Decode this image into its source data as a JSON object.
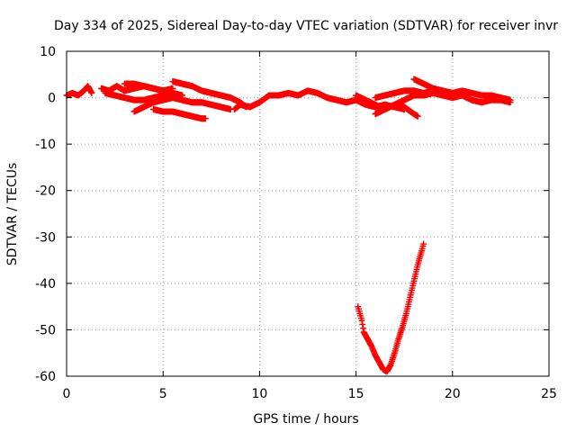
{
  "chart_data": {
    "type": "scatter",
    "title": "Day 334 of 2025, Sidereal Day-to-day VTEC variation (SDTVAR) for receiver invr",
    "xlabel": "GPS time / hours",
    "ylabel": "SDTVAR / TECUs",
    "xlim": [
      0,
      25
    ],
    "ylim": [
      -60,
      10
    ],
    "xticks": [
      0,
      5,
      10,
      15,
      20,
      25
    ],
    "yticks": [
      10,
      0,
      -10,
      -20,
      -30,
      -40,
      -50,
      -60
    ],
    "grid": true,
    "marker": "plus",
    "colors": {
      "series": "#ff0000",
      "grid": "#a0a0a0",
      "axes": "#000000"
    },
    "series": [
      {
        "tracks": [
          [
            [
              0.0,
              0.5
            ],
            [
              0.3,
              1.0
            ],
            [
              0.6,
              0.5
            ],
            [
              0.9,
              1.5
            ],
            [
              1.1,
              2.5
            ],
            [
              1.3,
              1.0
            ]
          ],
          [
            [
              1.8,
              2.0
            ],
            [
              2.2,
              1.5
            ],
            [
              2.6,
              2.5
            ],
            [
              3.0,
              1.5
            ],
            [
              3.5,
              2.0
            ],
            [
              4.0,
              2.5
            ],
            [
              4.5,
              2.0
            ],
            [
              5.0,
              1.5
            ],
            [
              5.5,
              2.0
            ]
          ],
          [
            [
              2.0,
              1.0
            ],
            [
              2.5,
              0.5
            ],
            [
              3.0,
              0.0
            ],
            [
              3.5,
              -0.5
            ],
            [
              4.0,
              -0.5
            ],
            [
              4.5,
              0.0
            ],
            [
              5.0,
              0.5
            ],
            [
              5.5,
              0.0
            ]
          ],
          [
            [
              3.0,
              3.0
            ],
            [
              3.5,
              3.0
            ],
            [
              4.0,
              2.5
            ],
            [
              4.5,
              2.0
            ],
            [
              5.0,
              1.5
            ],
            [
              5.5,
              1.0
            ],
            [
              6.0,
              0.5
            ]
          ],
          [
            [
              5.5,
              3.5
            ],
            [
              6.0,
              3.0
            ],
            [
              6.5,
              2.5
            ],
            [
              7.0,
              1.5
            ],
            [
              7.5,
              1.0
            ],
            [
              8.0,
              0.5
            ],
            [
              8.5,
              0.0
            ],
            [
              9.0,
              -1.0
            ],
            [
              9.3,
              -2.0
            ]
          ],
          [
            [
              3.5,
              -3.0
            ],
            [
              4.0,
              -2.0
            ],
            [
              4.5,
              -1.0
            ],
            [
              5.0,
              -0.5
            ],
            [
              5.5,
              0.0
            ],
            [
              6.0,
              -0.5
            ],
            [
              6.5,
              -1.0
            ],
            [
              7.0,
              -1.0
            ],
            [
              7.5,
              -1.5
            ],
            [
              8.0,
              -2.0
            ],
            [
              8.5,
              -2.5
            ]
          ],
          [
            [
              4.5,
              -2.5
            ],
            [
              5.0,
              -3.0
            ],
            [
              5.5,
              -3.0
            ],
            [
              6.0,
              -3.5
            ],
            [
              6.5,
              -4.0
            ],
            [
              7.0,
              -4.5
            ],
            [
              7.2,
              -4.5
            ]
          ],
          [
            [
              8.7,
              -2.5
            ],
            [
              9.0,
              -1.5
            ],
            [
              9.5,
              -2.0
            ],
            [
              10.0,
              -1.0
            ],
            [
              10.5,
              0.5
            ],
            [
              11.0,
              0.5
            ],
            [
              11.5,
              1.0
            ],
            [
              12.0,
              0.5
            ],
            [
              12.5,
              1.5
            ],
            [
              13.0,
              1.0
            ],
            [
              13.5,
              0.0
            ],
            [
              14.0,
              -0.5
            ],
            [
              14.5,
              -1.0
            ],
            [
              15.0,
              -0.5
            ],
            [
              15.5,
              -1.5
            ],
            [
              16.0,
              -2.0
            ],
            [
              16.5,
              -1.5
            ],
            [
              17.0,
              -2.0
            ],
            [
              17.5,
              -2.5
            ]
          ],
          [
            [
              15.0,
              0.5
            ],
            [
              15.5,
              -0.5
            ],
            [
              16.0,
              -1.5
            ],
            [
              16.5,
              -2.5
            ],
            [
              17.0,
              -1.5
            ],
            [
              17.5,
              -2.0
            ],
            [
              18.0,
              -3.5
            ],
            [
              18.2,
              -4.0
            ]
          ],
          [
            [
              16.0,
              0.0
            ],
            [
              16.5,
              0.5
            ],
            [
              17.0,
              1.0
            ],
            [
              17.5,
              1.5
            ],
            [
              18.0,
              1.5
            ],
            [
              18.5,
              1.0
            ],
            [
              19.0,
              1.5
            ],
            [
              19.5,
              1.0
            ],
            [
              20.0,
              0.5
            ],
            [
              20.5,
              1.0
            ]
          ],
          [
            [
              16.0,
              -3.5
            ],
            [
              16.5,
              -2.5
            ],
            [
              17.0,
              -1.5
            ],
            [
              17.5,
              -0.5
            ],
            [
              18.0,
              0.5
            ],
            [
              18.5,
              0.5
            ],
            [
              19.0,
              1.0
            ],
            [
              19.5,
              0.5
            ],
            [
              20.0,
              0.0
            ],
            [
              20.5,
              0.5
            ],
            [
              21.0,
              -0.5
            ],
            [
              21.5,
              -1.0
            ],
            [
              22.0,
              -0.5
            ],
            [
              22.5,
              -0.5
            ],
            [
              23.0,
              -1.0
            ]
          ],
          [
            [
              18.0,
              4.0
            ],
            [
              18.5,
              3.0
            ],
            [
              19.0,
              2.0
            ],
            [
              19.5,
              1.5
            ],
            [
              20.0,
              1.0
            ],
            [
              20.5,
              1.5
            ],
            [
              21.0,
              1.0
            ],
            [
              21.5,
              0.5
            ],
            [
              22.0,
              0.5
            ],
            [
              22.5,
              0.0
            ],
            [
              23.0,
              -0.5
            ]
          ],
          [
            [
              15.1,
              -45.0
            ],
            [
              15.2,
              -46.5
            ],
            [
              15.3,
              -48.0
            ],
            [
              15.4,
              -50.5
            ],
            [
              15.6,
              -52.0
            ],
            [
              15.8,
              -53.5
            ],
            [
              16.0,
              -55.5
            ],
            [
              16.2,
              -57.0
            ],
            [
              16.4,
              -58.5
            ],
            [
              16.6,
              -59.0
            ],
            [
              16.8,
              -57.5
            ],
            [
              17.0,
              -55.0
            ],
            [
              17.2,
              -52.0
            ],
            [
              17.4,
              -49.5
            ],
            [
              17.6,
              -46.5
            ],
            [
              17.8,
              -43.0
            ],
            [
              18.0,
              -39.5
            ],
            [
              18.2,
              -36.0
            ],
            [
              18.4,
              -33.0
            ],
            [
              18.5,
              -31.5
            ]
          ]
        ]
      }
    ]
  }
}
